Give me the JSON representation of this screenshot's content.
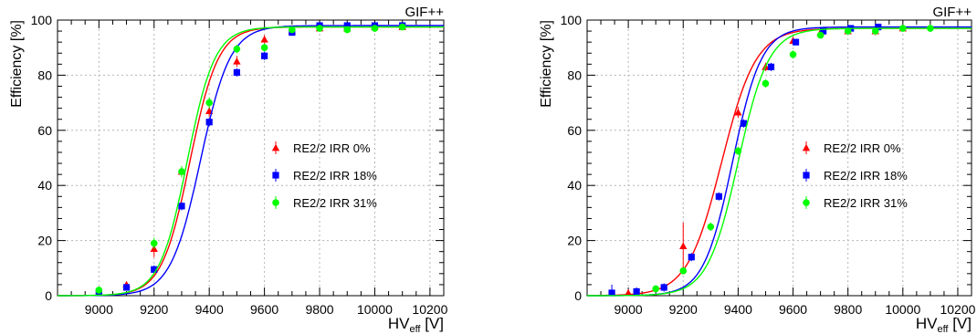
{
  "figure": {
    "panels": [
      {
        "tag": "GIF++",
        "ylabel": "Efficiency [%]",
        "xlabel_main": "HV",
        "xlabel_sub": "eff",
        "xlabel_unit": " [V]"
      },
      {
        "tag": "GIF++",
        "ylabel": "Efficiency [%]",
        "xlabel_main": "HV",
        "xlabel_sub": "eff",
        "xlabel_unit": " [V]"
      }
    ]
  },
  "colors": {
    "red": "#ff0000",
    "blue": "#0000ff",
    "green": "#00ff00",
    "grid": "#b4b4b4"
  },
  "chart_data": [
    {
      "type": "scatter",
      "title": "",
      "annotation": "GIF++",
      "xlabel": "HV_eff [V]",
      "ylabel": "Efficiency [%]",
      "xlim": [
        8850,
        10250
      ],
      "ylim": [
        0,
        100
      ],
      "xticks": [
        9000,
        9200,
        9400,
        9600,
        9800,
        10000,
        10200
      ],
      "yticks": [
        0,
        20,
        40,
        60,
        80,
        100
      ],
      "grid": true,
      "legend_position": "center-right",
      "series": [
        {
          "name": "RE2/2 IRR 0%",
          "marker": "triangle",
          "color": "#ff0000",
          "x": [
            9000,
            9100,
            9200,
            9300,
            9400,
            9500,
            9600,
            9700,
            9800,
            9900,
            10000,
            10100
          ],
          "y": [
            1,
            4,
            17,
            45,
            67,
            85,
            93,
            96,
            97,
            97,
            97.5,
            97.5
          ],
          "err": [
            0.5,
            1,
            3,
            2,
            2,
            2,
            1.5,
            1,
            1,
            1,
            1,
            1
          ],
          "fit": {
            "plateau": 97.5,
            "midpoint": 9330,
            "slope": 0.0195
          }
        },
        {
          "name": "RE2/2 IRR 18%",
          "marker": "square",
          "color": "#0000ff",
          "x": [
            9000,
            9100,
            9200,
            9300,
            9400,
            9500,
            9600,
            9700,
            9800,
            9900,
            10000,
            10100
          ],
          "y": [
            1,
            3,
            9.5,
            32.5,
            63,
            81,
            87,
            95.5,
            98,
            98,
            98,
            98
          ],
          "err": [
            0.5,
            1,
            1.5,
            1.5,
            1.5,
            1.5,
            1.5,
            1,
            1,
            1,
            1,
            1
          ],
          "fit": {
            "plateau": 98,
            "midpoint": 9368,
            "slope": 0.0185
          }
        },
        {
          "name": "RE2/2 IRR 31%",
          "marker": "circle",
          "color": "#00ff00",
          "x": [
            9000,
            9200,
            9300,
            9400,
            9500,
            9600,
            9700,
            9800,
            9900,
            10000,
            10100
          ],
          "y": [
            2,
            19,
            45,
            70,
            89.5,
            90,
            96.5,
            97,
            96.5,
            97,
            97.5
          ],
          "err": [
            0.5,
            2,
            2,
            2,
            1.5,
            1.5,
            1,
            1,
            1,
            1,
            1
          ],
          "fit": {
            "plateau": 97.5,
            "midpoint": 9320,
            "slope": 0.02
          }
        }
      ]
    },
    {
      "type": "scatter",
      "title": "",
      "annotation": "GIF++",
      "xlabel": "HV_eff [V]",
      "ylabel": "Efficiency [%]",
      "xlim": [
        8850,
        10250
      ],
      "ylim": [
        0,
        100
      ],
      "xticks": [
        9000,
        9200,
        9400,
        9600,
        9800,
        10000,
        10200
      ],
      "yticks": [
        0,
        20,
        40,
        60,
        80,
        100
      ],
      "grid": true,
      "legend_position": "center-right",
      "series": [
        {
          "name": "RE2/2 IRR 0%",
          "marker": "triangle",
          "color": "#ff0000",
          "x": [
            9000,
            9200,
            9400,
            9500,
            9600,
            9700,
            9800,
            9900,
            10000
          ],
          "y": [
            1,
            18,
            66.5,
            83,
            92.5,
            95.5,
            96,
            96,
            97
          ],
          "err": [
            0.5,
            8.5,
            2,
            1.5,
            1.5,
            1,
            1,
            1.5,
            1
          ],
          "fit": {
            "plateau": 97,
            "midpoint": 9340,
            "slope": 0.016
          }
        },
        {
          "name": "RE2/2 IRR 18%",
          "marker": "square",
          "color": "#0000ff",
          "x": [
            8940,
            9030,
            9130,
            9230,
            9330,
            9420,
            9520,
            9610,
            9710,
            9810,
            9910
          ],
          "y": [
            1,
            1.5,
            3,
            14,
            36,
            62.5,
            83,
            92,
            96,
            97,
            97.5
          ],
          "err": [
            3,
            1.5,
            1.5,
            1.5,
            1.5,
            1.5,
            1.5,
            1,
            1,
            1,
            1
          ],
          "fit": {
            "plateau": 97.5,
            "midpoint": 9380,
            "slope": 0.019
          }
        },
        {
          "name": "RE2/2 IRR 31%",
          "marker": "circle",
          "color": "#00ff00",
          "x": [
            9100,
            9200,
            9300,
            9400,
            9500,
            9600,
            9700,
            9800,
            9900,
            10000,
            10100
          ],
          "y": [
            2.5,
            9,
            25,
            52.5,
            77,
            87.5,
            94.5,
            96,
            96,
            97,
            97
          ],
          "err": [
            1,
            1,
            1.5,
            1.5,
            1.5,
            1.5,
            1,
            1,
            1,
            1,
            1
          ],
          "fit": {
            "plateau": 97,
            "midpoint": 9400,
            "slope": 0.018
          }
        }
      ]
    }
  ]
}
